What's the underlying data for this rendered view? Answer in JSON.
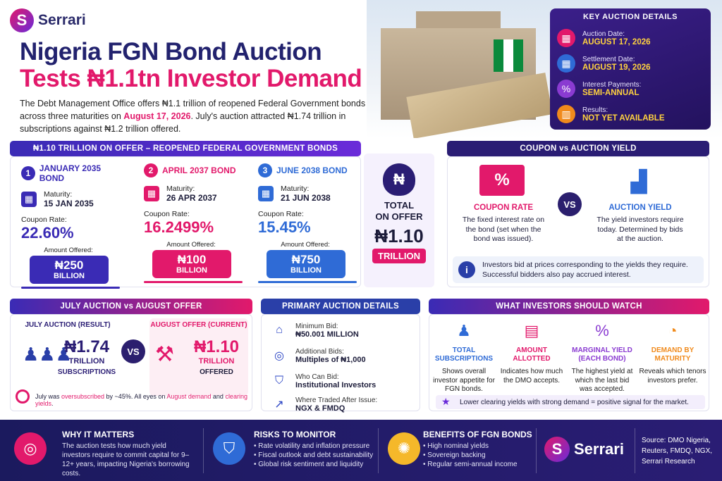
{
  "brand": {
    "name": "Serrari",
    "mark": "S"
  },
  "header": {
    "title_line1": "Nigeria FGN Bond Auction",
    "title_line2": "Tests ₦1.1tn Investor Demand",
    "intro_part1": "The Debt Management Office offers ₦1.1 trillion of reopened Federal Government bonds across three maturities on ",
    "intro_date": "August 17, 2026",
    "intro_part2": ". July's auction attracted ₦1.74 trillion in subscriptions against ₦1.2 trillion offered."
  },
  "key_details": {
    "title": "KEY AUCTION DETAILS",
    "items": [
      {
        "label": "Auction Date:",
        "value": "AUGUST 17, 2026",
        "color": "#e2196b",
        "icon": "calendar-icon"
      },
      {
        "label": "Settlement Date:",
        "value": "AUGUST 19, 2026",
        "color": "#2f6bd6",
        "icon": "calendar-icon"
      },
      {
        "label": "Interest Payments:",
        "value": "SEMI-ANNUAL",
        "color": "#8a3bd1",
        "icon": "percent-icon"
      },
      {
        "label": "Results:",
        "value": "NOT YET AVAILABLE",
        "color": "#f08a1c",
        "icon": "chart-icon"
      }
    ]
  },
  "offer": {
    "header": "₦1.10 TRILLION ON OFFER – REOPENED FEDERAL GOVERNMENT BONDS",
    "maturity_label": "Maturity:",
    "coupon_label": "Coupon Rate:",
    "amount_label": "Amount Offered:",
    "bonds": [
      {
        "num": "1",
        "name": "JANUARY 2035 BOND",
        "maturity": "15 JAN 2035",
        "coupon": "22.60%",
        "amount": "₦250",
        "unit": "BILLION",
        "color": "#3a2bb5"
      },
      {
        "num": "2",
        "name": "APRIL 2037 BOND",
        "maturity": "26 APR 2037",
        "coupon": "16.2499%",
        "amount": "₦100",
        "unit": "BILLION",
        "color": "#e2196b"
      },
      {
        "num": "3",
        "name": "JUNE 2038 BOND",
        "maturity": "21 JUN 2038",
        "coupon": "15.45%",
        "amount": "₦750",
        "unit": "BILLION",
        "color": "#2f6bd6"
      }
    ],
    "total": {
      "line1": "TOTAL",
      "line2": "ON OFFER",
      "amount": "₦1.10",
      "unit": "TRILLION"
    }
  },
  "coupon_vs_yield": {
    "header": "COUPON vs AUCTION YIELD",
    "coupon_title": "COUPON RATE",
    "coupon_text": "The fixed interest rate on the bond (set when the bond was issued).",
    "vs": "VS",
    "yield_title": "AUCTION YIELD",
    "yield_text": "The yield investors require today. Determined by bids at the auction.",
    "note": "Investors bid at prices corresponding to the yields they require. Successful bidders also pay accrued interest."
  },
  "july_vs_august": {
    "header": "JULY AUCTION vs AUGUST OFFER",
    "july_label": "JULY AUCTION (RESULT)",
    "july_amount": "₦1.74",
    "july_unit": "TRILLION",
    "july_sub": "SUBSCRIPTIONS",
    "vs": "VS",
    "aug_label": "AUGUST OFFER (CURRENT)",
    "aug_amount": "₦1.10",
    "aug_unit": "TRILLION",
    "aug_sub": "OFFERED",
    "note_a": "July was ",
    "note_b": "oversubscribed",
    "note_c": " by ~45%. All eyes on ",
    "note_d": "August demand",
    "note_e": " and ",
    "note_f": "clearing yields",
    "note_g": "."
  },
  "primary": {
    "header": "PRIMARY AUCTION DETAILS",
    "rows": [
      {
        "label": "Minimum Bid:",
        "value": "₦50.001 MILLION",
        "icon": "bank-icon"
      },
      {
        "label": "Additional Bids:",
        "value": "Multiples of ₦1,000",
        "icon": "coins-icon"
      },
      {
        "label": "Who Can Bid:",
        "value": "Institutional Investors",
        "icon": "shield-check-icon"
      },
      {
        "label": "Where Traded After Issue:",
        "value": "NGX & FMDQ",
        "icon": "trend-chart-icon"
      }
    ]
  },
  "watch": {
    "header": "WHAT INVESTORS SHOULD WATCH",
    "items": [
      {
        "title": "TOTAL SUBSCRIPTIONS",
        "text": "Shows overall investor appetite for FGN bonds.",
        "color": "#2f6bd6"
      },
      {
        "title": "AMOUNT ALLOTTED",
        "text": "Indicates how much the DMO accepts.",
        "color": "#e2196b"
      },
      {
        "title": "MARGINAL YIELD (EACH BOND)",
        "text": "The highest yield at which the last bid was accepted.",
        "color": "#8a3bd1"
      },
      {
        "title": "DEMAND BY MATURITY",
        "text": "Reveals which tenors investors prefer.",
        "color": "#f08a1c"
      }
    ],
    "note": "Lower clearing yields with strong demand = positive signal for the market."
  },
  "footer": {
    "why_title": "WHY IT MATTERS",
    "why_text": "The auction tests how much yield investors require to commit capital for 9–12+ years, impacting Nigeria's borrowing costs.",
    "risks_title": "RISKS TO MONITOR",
    "risks": [
      "Rate volatility and inflation pressure",
      "Fiscal outlook and debt sustainability",
      "Global risk sentiment and liquidity"
    ],
    "benefits_title": "BENEFITS OF FGN BONDS",
    "benefits": [
      "High nominal yields",
      "Sovereign backing",
      "Regular semi-annual income"
    ],
    "source": "Source: DMO Nigeria, Reuters, FMDQ, NGX, Serrari Research"
  }
}
